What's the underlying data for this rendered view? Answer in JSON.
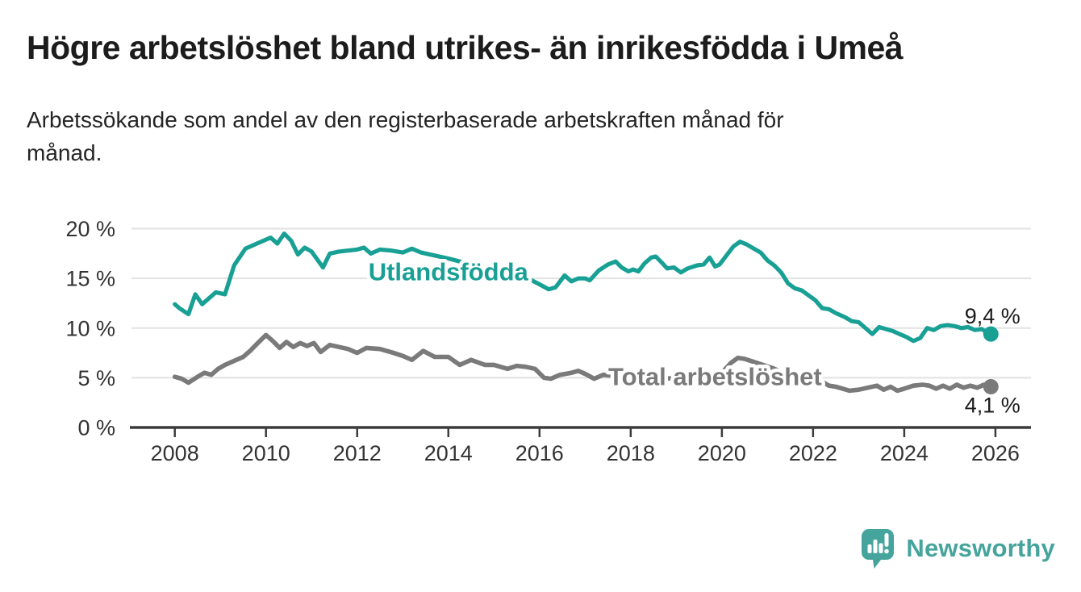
{
  "header": {
    "title": "Högre arbetslöshet bland utrikes- än inrikesfödda i Umeå",
    "subtitle": "Arbetssökande som andel av den registerbaserade arbetskraften månad för\nmånad."
  },
  "chart_data": {
    "type": "line",
    "title": "Högre arbetslöshet bland utrikes- än inrikesfödda i Umeå",
    "subtitle": "Arbetssökande som andel av den registerbaserade arbetskraften månad för månad.",
    "xlabel": "",
    "ylabel": "",
    "unit": "%",
    "grid": "horizontal",
    "legend_position": "inline-labels",
    "xlim": [
      2007.05,
      2026.78
    ],
    "ylim": [
      0,
      21.1
    ],
    "x_ticks": {
      "values": [
        2008,
        2010,
        2012,
        2014,
        2016,
        2018,
        2020,
        2022,
        2024,
        2026
      ],
      "labels": [
        "2008",
        "2010",
        "2012",
        "2014",
        "2016",
        "2018",
        "2020",
        "2022",
        "2024",
        "2026"
      ]
    },
    "y_ticks": {
      "values": [
        0,
        5,
        10,
        15,
        20
      ],
      "labels": [
        "0 %",
        "5 %",
        "10 %",
        "15 %",
        "20 %"
      ]
    },
    "series": [
      {
        "name": "Utlandsfödda",
        "color": "#18A095",
        "end_label": "9,4 %",
        "end_value": 9.4,
        "end_dot": true,
        "label_anchor": {
          "x": 2014.0,
          "y": 14.8
        },
        "points": [
          [
            2008.0,
            12.4
          ],
          [
            2008.1,
            12.0
          ],
          [
            2008.3,
            11.4
          ],
          [
            2008.45,
            13.4
          ],
          [
            2008.6,
            12.4
          ],
          [
            2008.9,
            13.6
          ],
          [
            2009.1,
            13.4
          ],
          [
            2009.3,
            16.3
          ],
          [
            2009.55,
            18.0
          ],
          [
            2009.8,
            18.5
          ],
          [
            2010.1,
            19.1
          ],
          [
            2010.25,
            18.5
          ],
          [
            2010.4,
            19.5
          ],
          [
            2010.55,
            18.8
          ],
          [
            2010.7,
            17.4
          ],
          [
            2010.85,
            18.1
          ],
          [
            2011.0,
            17.7
          ],
          [
            2011.25,
            16.1
          ],
          [
            2011.4,
            17.5
          ],
          [
            2011.6,
            17.7
          ],
          [
            2011.8,
            17.8
          ],
          [
            2012.0,
            17.9
          ],
          [
            2012.15,
            18.1
          ],
          [
            2012.3,
            17.5
          ],
          [
            2012.5,
            17.9
          ],
          [
            2012.75,
            17.8
          ],
          [
            2013.0,
            17.6
          ],
          [
            2013.2,
            18.0
          ],
          [
            2013.4,
            17.6
          ],
          [
            2013.6,
            17.4
          ],
          [
            2013.8,
            17.2
          ],
          [
            2014.0,
            17.0
          ],
          [
            2014.25,
            16.7
          ],
          [
            2014.5,
            16.4
          ],
          [
            2014.75,
            16.1
          ],
          [
            2015.0,
            15.8
          ],
          [
            2015.25,
            15.5
          ],
          [
            2015.5,
            15.2
          ],
          [
            2015.75,
            15.0
          ],
          [
            2016.0,
            14.4
          ],
          [
            2016.2,
            13.9
          ],
          [
            2016.35,
            14.1
          ],
          [
            2016.55,
            15.3
          ],
          [
            2016.7,
            14.7
          ],
          [
            2016.85,
            15.0
          ],
          [
            2017.0,
            15.0
          ],
          [
            2017.1,
            14.8
          ],
          [
            2017.3,
            15.8
          ],
          [
            2017.5,
            16.4
          ],
          [
            2017.67,
            16.7
          ],
          [
            2017.8,
            16.1
          ],
          [
            2017.95,
            15.7
          ],
          [
            2018.05,
            15.9
          ],
          [
            2018.17,
            15.7
          ],
          [
            2018.3,
            16.5
          ],
          [
            2018.45,
            17.1
          ],
          [
            2018.55,
            17.2
          ],
          [
            2018.7,
            16.5
          ],
          [
            2018.8,
            16.0
          ],
          [
            2018.95,
            16.1
          ],
          [
            2019.1,
            15.6
          ],
          [
            2019.25,
            16.0
          ],
          [
            2019.45,
            16.3
          ],
          [
            2019.6,
            16.4
          ],
          [
            2019.73,
            17.1
          ],
          [
            2019.85,
            16.2
          ],
          [
            2019.95,
            16.4
          ],
          [
            2020.1,
            17.3
          ],
          [
            2020.25,
            18.2
          ],
          [
            2020.4,
            18.7
          ],
          [
            2020.55,
            18.4
          ],
          [
            2020.7,
            18.0
          ],
          [
            2020.85,
            17.6
          ],
          [
            2021.0,
            16.8
          ],
          [
            2021.15,
            16.3
          ],
          [
            2021.3,
            15.6
          ],
          [
            2021.45,
            14.5
          ],
          [
            2021.6,
            14.0
          ],
          [
            2021.75,
            13.8
          ],
          [
            2021.9,
            13.3
          ],
          [
            2022.05,
            12.8
          ],
          [
            2022.2,
            12.0
          ],
          [
            2022.35,
            11.9
          ],
          [
            2022.5,
            11.5
          ],
          [
            2022.7,
            11.1
          ],
          [
            2022.85,
            10.7
          ],
          [
            2023.0,
            10.6
          ],
          [
            2023.15,
            10.0
          ],
          [
            2023.3,
            9.4
          ],
          [
            2023.45,
            10.1
          ],
          [
            2023.6,
            9.9
          ],
          [
            2023.75,
            9.7
          ],
          [
            2023.9,
            9.4
          ],
          [
            2024.05,
            9.1
          ],
          [
            2024.2,
            8.7
          ],
          [
            2024.35,
            9.0
          ],
          [
            2024.5,
            10.0
          ],
          [
            2024.65,
            9.8
          ],
          [
            2024.8,
            10.2
          ],
          [
            2024.95,
            10.3
          ],
          [
            2025.1,
            10.2
          ],
          [
            2025.25,
            10.0
          ],
          [
            2025.4,
            10.1
          ],
          [
            2025.55,
            9.8
          ],
          [
            2025.7,
            9.9
          ],
          [
            2025.8,
            9.6
          ],
          [
            2025.9,
            9.4
          ]
        ]
      },
      {
        "name": "Total arbetslöshet",
        "color": "#7A7A7A",
        "end_label": "4,1 %",
        "end_value": 4.1,
        "end_dot": true,
        "label_anchor": {
          "x": 2019.85,
          "y": 4.25
        },
        "points": [
          [
            2008.0,
            5.1
          ],
          [
            2008.15,
            4.9
          ],
          [
            2008.3,
            4.5
          ],
          [
            2008.5,
            5.1
          ],
          [
            2008.65,
            5.5
          ],
          [
            2008.8,
            5.3
          ],
          [
            2008.95,
            5.9
          ],
          [
            2009.1,
            6.3
          ],
          [
            2009.3,
            6.7
          ],
          [
            2009.5,
            7.1
          ],
          [
            2009.65,
            7.7
          ],
          [
            2009.8,
            8.4
          ],
          [
            2010.0,
            9.3
          ],
          [
            2010.15,
            8.7
          ],
          [
            2010.3,
            8.0
          ],
          [
            2010.45,
            8.6
          ],
          [
            2010.6,
            8.1
          ],
          [
            2010.75,
            8.5
          ],
          [
            2010.9,
            8.2
          ],
          [
            2011.05,
            8.5
          ],
          [
            2011.2,
            7.6
          ],
          [
            2011.4,
            8.3
          ],
          [
            2011.6,
            8.1
          ],
          [
            2011.8,
            7.9
          ],
          [
            2012.0,
            7.5
          ],
          [
            2012.2,
            8.0
          ],
          [
            2012.5,
            7.9
          ],
          [
            2012.8,
            7.5
          ],
          [
            2013.0,
            7.2
          ],
          [
            2013.2,
            6.8
          ],
          [
            2013.45,
            7.7
          ],
          [
            2013.7,
            7.1
          ],
          [
            2014.0,
            7.1
          ],
          [
            2014.25,
            6.3
          ],
          [
            2014.5,
            6.8
          ],
          [
            2014.8,
            6.3
          ],
          [
            2015.0,
            6.3
          ],
          [
            2015.3,
            5.9
          ],
          [
            2015.5,
            6.2
          ],
          [
            2015.7,
            6.1
          ],
          [
            2015.9,
            5.9
          ],
          [
            2016.1,
            5.0
          ],
          [
            2016.25,
            4.9
          ],
          [
            2016.45,
            5.3
          ],
          [
            2016.7,
            5.5
          ],
          [
            2016.85,
            5.7
          ],
          [
            2017.0,
            5.4
          ],
          [
            2017.2,
            4.9
          ],
          [
            2017.4,
            5.3
          ],
          [
            2017.6,
            5.2
          ],
          [
            2017.8,
            5.1
          ],
          [
            2018.0,
            5.3
          ],
          [
            2018.25,
            5.1
          ],
          [
            2018.5,
            5.0
          ],
          [
            2018.75,
            4.9
          ],
          [
            2019.0,
            5.0
          ],
          [
            2019.25,
            5.1
          ],
          [
            2019.5,
            5.2
          ],
          [
            2019.75,
            5.3
          ],
          [
            2020.0,
            5.5
          ],
          [
            2020.2,
            6.5
          ],
          [
            2020.35,
            7.0
          ],
          [
            2020.5,
            6.9
          ],
          [
            2020.7,
            6.6
          ],
          [
            2020.9,
            6.3
          ],
          [
            2021.1,
            6.0
          ],
          [
            2021.3,
            5.6
          ],
          [
            2021.5,
            5.2
          ],
          [
            2021.7,
            4.8
          ],
          [
            2021.9,
            4.5
          ],
          [
            2022.05,
            4.3
          ],
          [
            2022.2,
            4.6
          ],
          [
            2022.35,
            4.2
          ],
          [
            2022.5,
            4.1
          ],
          [
            2022.65,
            3.9
          ],
          [
            2022.8,
            3.7
          ],
          [
            2023.0,
            3.8
          ],
          [
            2023.2,
            4.0
          ],
          [
            2023.4,
            4.2
          ],
          [
            2023.55,
            3.8
          ],
          [
            2023.7,
            4.1
          ],
          [
            2023.85,
            3.7
          ],
          [
            2024.0,
            3.9
          ],
          [
            2024.2,
            4.2
          ],
          [
            2024.4,
            4.3
          ],
          [
            2024.55,
            4.2
          ],
          [
            2024.7,
            3.9
          ],
          [
            2024.85,
            4.2
          ],
          [
            2025.0,
            3.9
          ],
          [
            2025.15,
            4.3
          ],
          [
            2025.3,
            4.0
          ],
          [
            2025.45,
            4.2
          ],
          [
            2025.6,
            4.0
          ],
          [
            2025.75,
            4.3
          ],
          [
            2025.9,
            4.1
          ]
        ]
      }
    ]
  },
  "footer": {
    "brand": "Newsworthy"
  },
  "colors": {
    "accent": "#18A095",
    "series_gray": "#7A7A7A",
    "grid": "#E2E2E2",
    "axis": "#3C3C3C",
    "text": "#1C1C1C",
    "logo": "#45A49C"
  }
}
